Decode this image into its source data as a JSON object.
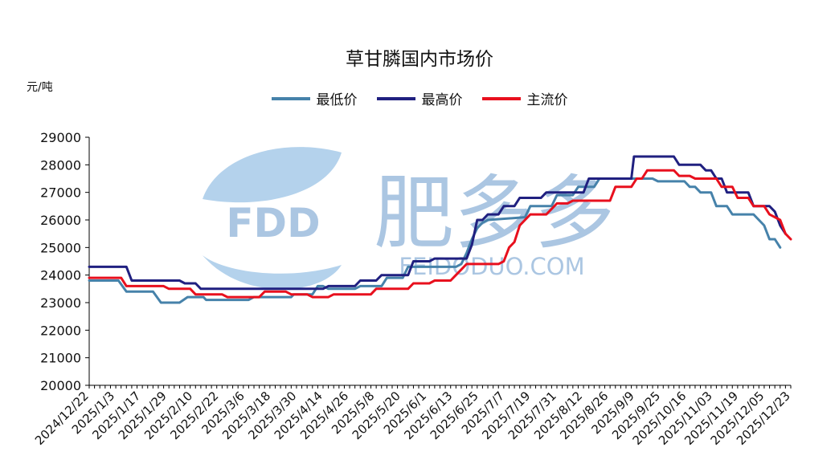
{
  "chart_data": {
    "type": "line",
    "title": "草甘膦国内市场价",
    "ylabel": "元/吨",
    "ylim": [
      20000,
      29000
    ],
    "yticks": [
      "29000",
      "28000",
      "27000",
      "26000",
      "25000",
      "24000",
      "23000",
      "22000",
      "21000",
      "20000"
    ],
    "categories": [
      "2024/12/22",
      "2025/1/3",
      "2025/1/17",
      "2025/1/29",
      "2025/2/10",
      "2025/2/22",
      "2025/3/6",
      "2025/3/18",
      "2025/3/30",
      "2025/4/14",
      "2025/4/26",
      "2025/5/8",
      "2025/5/20",
      "2025/6/1",
      "2025/6/13",
      "2025/6/25",
      "2025/7/7",
      "2025/7/19",
      "2025/7/31",
      "2025/8/12",
      "2025/8/26",
      "2025/9/9",
      "2025/9/25",
      "2025/10/16",
      "2025/11/03",
      "2025/11/19",
      "2025/12/05",
      "2025/12/23"
    ],
    "legend_position": "top-center",
    "grid": false,
    "series": [
      {
        "name": "最低价",
        "color": "#4682aa",
        "points": [
          [
            0,
            23800
          ],
          [
            5.5,
            23800
          ],
          [
            7,
            23400
          ],
          [
            12,
            23400
          ],
          [
            13.5,
            23000
          ],
          [
            17,
            23000
          ],
          [
            18.5,
            23200
          ],
          [
            21.5,
            23200
          ],
          [
            22,
            23100
          ],
          [
            30,
            23100
          ],
          [
            31,
            23200
          ],
          [
            38,
            23200
          ],
          [
            38.5,
            23300
          ],
          [
            42,
            23300
          ],
          [
            43,
            23600
          ],
          [
            44,
            23600
          ],
          [
            45,
            23500
          ],
          [
            50,
            23500
          ],
          [
            51,
            23600
          ],
          [
            55,
            23600
          ],
          [
            56,
            23900
          ],
          [
            59,
            23900
          ],
          [
            60,
            24300
          ],
          [
            69,
            24300
          ],
          [
            70,
            24400
          ],
          [
            71,
            24800
          ],
          [
            72,
            25300
          ],
          [
            73,
            25700
          ],
          [
            74,
            25900
          ],
          [
            75,
            26000
          ],
          [
            82,
            26100
          ],
          [
            83,
            26500
          ],
          [
            87,
            26500
          ],
          [
            88,
            26900
          ],
          [
            91,
            26900
          ],
          [
            92,
            27200
          ],
          [
            95,
            27200
          ],
          [
            96,
            27500
          ],
          [
            100,
            27500
          ],
          [
            106,
            27500
          ],
          [
            107,
            27400
          ],
          [
            112,
            27400
          ],
          [
            113,
            27200
          ],
          [
            114,
            27200
          ],
          [
            115,
            27000
          ],
          [
            117,
            27000
          ],
          [
            118,
            26500
          ],
          [
            120,
            26500
          ],
          [
            121,
            26200
          ],
          [
            125,
            26200
          ],
          [
            126,
            26000
          ],
          [
            127,
            25800
          ],
          [
            128,
            25300
          ],
          [
            129,
            25300
          ],
          [
            130,
            25000
          ]
        ]
      },
      {
        "name": "最高价",
        "color": "#202080",
        "points": [
          [
            0,
            24300
          ],
          [
            7,
            24300
          ],
          [
            8,
            23800
          ],
          [
            17,
            23800
          ],
          [
            18,
            23700
          ],
          [
            20,
            23700
          ],
          [
            21,
            23500
          ],
          [
            44,
            23500
          ],
          [
            45,
            23600
          ],
          [
            50,
            23600
          ],
          [
            51,
            23800
          ],
          [
            54,
            23800
          ],
          [
            55,
            24000
          ],
          [
            60,
            24000
          ],
          [
            61,
            24500
          ],
          [
            64,
            24500
          ],
          [
            65,
            24600
          ],
          [
            71,
            24600
          ],
          [
            72,
            25100
          ],
          [
            73,
            26000
          ],
          [
            74,
            26000
          ],
          [
            75,
            26200
          ],
          [
            77,
            26200
          ],
          [
            78,
            26500
          ],
          [
            80,
            26500
          ],
          [
            81,
            26800
          ],
          [
            85,
            26800
          ],
          [
            86,
            27000
          ],
          [
            93,
            27000
          ],
          [
            94,
            27500
          ],
          [
            102,
            27500
          ],
          [
            102.5,
            28300
          ],
          [
            110,
            28300
          ],
          [
            111,
            28000
          ],
          [
            115,
            28000
          ],
          [
            116,
            27800
          ],
          [
            117,
            27800
          ],
          [
            118,
            27500
          ],
          [
            119,
            27500
          ],
          [
            120,
            27000
          ],
          [
            124,
            27000
          ],
          [
            125,
            26500
          ],
          [
            128,
            26500
          ],
          [
            129,
            26300
          ],
          [
            130,
            25800
          ],
          [
            131,
            25500
          ]
        ]
      },
      {
        "name": "主流价",
        "color": "#e8101e",
        "points": [
          [
            0,
            23900
          ],
          [
            6,
            23900
          ],
          [
            7,
            23600
          ],
          [
            14,
            23600
          ],
          [
            15,
            23500
          ],
          [
            19,
            23500
          ],
          [
            20,
            23300
          ],
          [
            25,
            23300
          ],
          [
            26,
            23200
          ],
          [
            32,
            23200
          ],
          [
            33,
            23400
          ],
          [
            37,
            23400
          ],
          [
            38,
            23300
          ],
          [
            41,
            23300
          ],
          [
            42,
            23200
          ],
          [
            45,
            23200
          ],
          [
            46,
            23300
          ],
          [
            53,
            23300
          ],
          [
            54,
            23500
          ],
          [
            60,
            23500
          ],
          [
            61,
            23700
          ],
          [
            64,
            23700
          ],
          [
            65,
            23800
          ],
          [
            68,
            23800
          ],
          [
            69,
            24000
          ],
          [
            70,
            24200
          ],
          [
            71,
            24400
          ],
          [
            77,
            24400
          ],
          [
            78,
            24500
          ],
          [
            79,
            25000
          ],
          [
            80,
            25200
          ],
          [
            81,
            25800
          ],
          [
            82,
            26000
          ],
          [
            83,
            26200
          ],
          [
            86,
            26200
          ],
          [
            87,
            26400
          ],
          [
            88,
            26600
          ],
          [
            90,
            26600
          ],
          [
            91,
            26700
          ],
          [
            98,
            26700
          ],
          [
            99,
            27200
          ],
          [
            102,
            27200
          ],
          [
            103,
            27500
          ],
          [
            104,
            27500
          ],
          [
            105,
            27800
          ],
          [
            110,
            27800
          ],
          [
            111,
            27600
          ],
          [
            113,
            27600
          ],
          [
            114,
            27500
          ],
          [
            118,
            27500
          ],
          [
            119,
            27200
          ],
          [
            121,
            27200
          ],
          [
            122,
            26800
          ],
          [
            124,
            26800
          ],
          [
            125,
            26500
          ],
          [
            127,
            26500
          ],
          [
            128,
            26200
          ],
          [
            130,
            26000
          ],
          [
            131,
            25500
          ],
          [
            132,
            25300
          ]
        ]
      }
    ]
  },
  "watermark": {
    "logo_text": "FDD",
    "brand_cn": "肥多多",
    "brand_en": "FEIDODUO.COM",
    "color": "#8fb3d9"
  }
}
